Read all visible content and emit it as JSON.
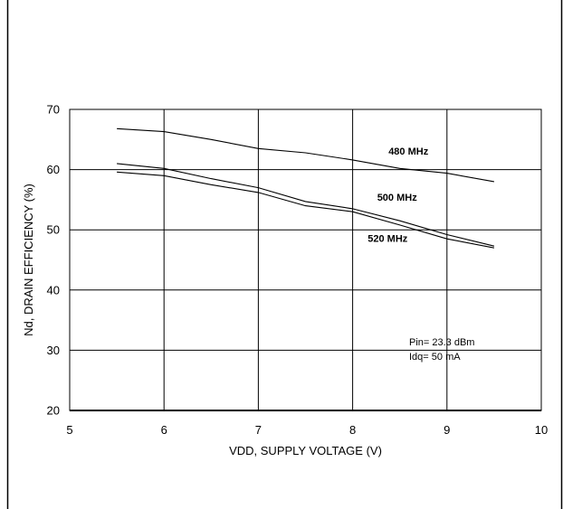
{
  "chart_data": {
    "type": "line",
    "title": "",
    "xlabel": "VDD, SUPPLY VOLTAGE (V)",
    "ylabel": "Nd, DRAIN EFFICIENCY (%)",
    "xlim": [
      5,
      10
    ],
    "ylim": [
      20,
      70
    ],
    "xticks": [
      "5",
      "6",
      "7",
      "8",
      "9",
      "10"
    ],
    "yticks": [
      "20",
      "30",
      "40",
      "50",
      "60",
      "70"
    ],
    "grid": true,
    "series": [
      {
        "name": "480 MHz",
        "x": [
          5.5,
          6.0,
          6.5,
          7.0,
          7.5,
          8.0,
          8.5,
          9.0,
          9.5
        ],
        "y": [
          66.8,
          66.3,
          65.0,
          63.5,
          62.8,
          61.6,
          60.2,
          59.4,
          58.0
        ]
      },
      {
        "name": "500 MHz",
        "x": [
          5.5,
          6.0,
          6.5,
          7.0,
          7.5,
          8.0,
          8.5,
          9.0,
          9.5
        ],
        "y": [
          61.0,
          60.2,
          58.5,
          57.0,
          54.7,
          53.5,
          51.5,
          49.2,
          47.3
        ]
      },
      {
        "name": "520 MHz",
        "x": [
          5.5,
          6.0,
          6.5,
          7.0,
          7.5,
          8.0,
          8.5,
          9.0,
          9.5
        ],
        "y": [
          59.6,
          59.0,
          57.5,
          56.2,
          54.0,
          53.0,
          50.8,
          48.5,
          47.0
        ]
      }
    ],
    "annotations": [
      "Pin= 23.3 dBm",
      "Idq= 50 mA"
    ]
  }
}
